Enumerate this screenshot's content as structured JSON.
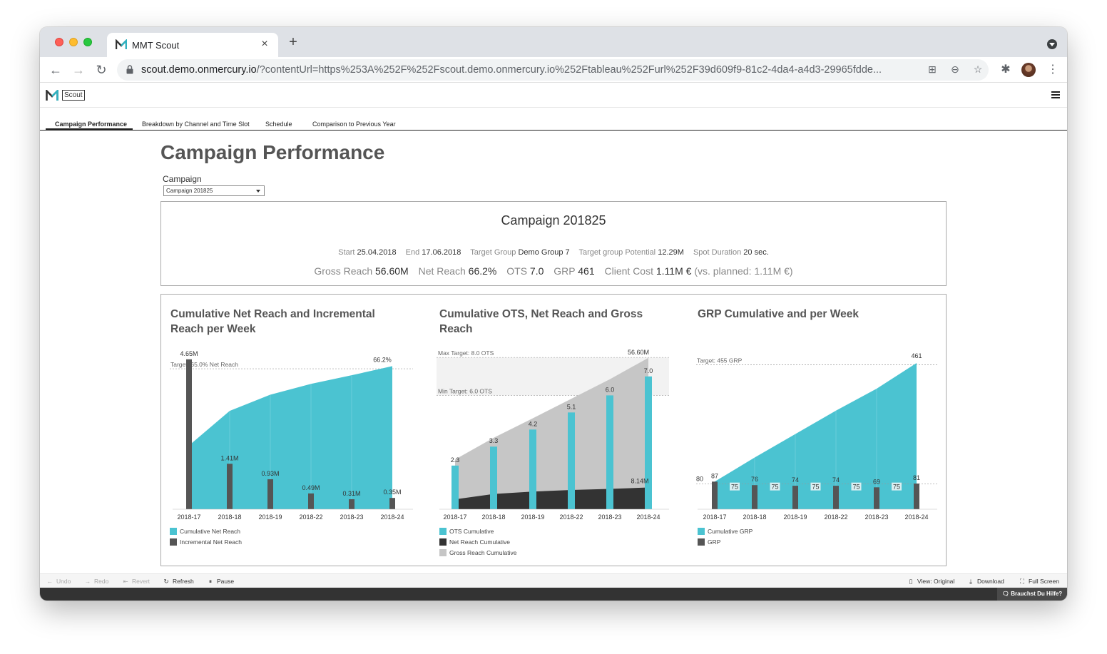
{
  "browser": {
    "tab_title": "MMT Scout",
    "url_host": "scout.demo.onmercury.io",
    "url_rest": "/?contentUrl=https%253A%252F%252Fscout.demo.onmercury.io%252Ftableau%252Furl%252F39d609f9-81c2-4da4-a4d3-29965fdde..."
  },
  "app": {
    "logo_text": "Scout",
    "tabs": [
      {
        "label": "Campaign Performance",
        "active": true
      },
      {
        "label": "Breakdown by Channel and Time Slot",
        "active": false
      },
      {
        "label": "Schedule",
        "active": false
      },
      {
        "label": "Comparison to Previous Year",
        "active": false
      }
    ]
  },
  "page": {
    "title": "Campaign Performance",
    "campaign_label": "Campaign",
    "campaign_selected": "Campaign 201825"
  },
  "summary": {
    "title": "Campaign 201825",
    "start_label": "Start",
    "start_value": "25.04.2018",
    "end_label": "End",
    "end_value": "17.06.2018",
    "target_group_label": "Target Group",
    "target_group_value": "Demo Group 7",
    "potential_label": "Target group Potential",
    "potential_value": "12.29M",
    "spot_label": "Spot Duration",
    "spot_value": "20 sec.",
    "gross_reach_label": "Gross Reach",
    "gross_reach_value": "56.60M",
    "net_reach_label": "Net Reach",
    "net_reach_value": "66.2%",
    "ots_label": "OTS",
    "ots_value": "7.0",
    "grp_label": "GRP",
    "grp_value": "461",
    "client_cost_label": "Client Cost",
    "client_cost_value": "1.11M €",
    "planned_text": "(vs. planned: 1.11M €)"
  },
  "colors": {
    "teal": "#4bc3d1",
    "teal_dark": "#2fb3c2",
    "dark_bar": "#555555",
    "net_reach_dark": "#333333",
    "gross_reach_gray": "#c6c6c6",
    "target_band": "#f2f2f2"
  },
  "chart_data": [
    {
      "type": "area",
      "title": "Cumulative Net Reach and Incremental Reach per Week",
      "categories": [
        "2018-17",
        "2018-18",
        "2018-19",
        "2018-22",
        "2018-23",
        "2018-24"
      ],
      "series": [
        {
          "name": "Cumulative Net Reach",
          "kind": "area",
          "values": [
            29.5,
            45.5,
            53.0,
            58.0,
            62.0,
            66.2
          ],
          "unit": "%"
        },
        {
          "name": "Incremental Net Reach",
          "kind": "bar",
          "values": [
            4.65,
            1.41,
            0.93,
            0.49,
            0.31,
            0.35
          ],
          "unit": "M",
          "labels": [
            "4.65M",
            "1.41M",
            "0.93M",
            "0.49M",
            "0.31M",
            "0.35M"
          ]
        }
      ],
      "end_label": "66.2%",
      "target_line": {
        "value": 65.0,
        "label": "Target: 65.0% Net Reach"
      },
      "legend": [
        "Cumulative Net Reach",
        "Incremental Net Reach"
      ]
    },
    {
      "type": "area",
      "title": "Cumulative OTS, Net Reach and Gross Reach",
      "categories": [
        "2018-17",
        "2018-18",
        "2018-19",
        "2018-22",
        "2018-23",
        "2018-24"
      ],
      "series": [
        {
          "name": "OTS Cumulative",
          "kind": "bar",
          "values": [
            2.3,
            3.3,
            4.2,
            5.1,
            6.0,
            7.0
          ],
          "labels": [
            "2.3",
            "3.3",
            "4.2",
            "5.1",
            "6.0",
            "7.0"
          ]
        },
        {
          "name": "Net Reach Cumulative",
          "kind": "area",
          "values": [
            3.7,
            5.7,
            6.6,
            7.2,
            7.6,
            8.14
          ],
          "unit": "M",
          "end_label": "8.14M"
        },
        {
          "name": "Gross Reach Cumulative",
          "kind": "area",
          "values": [
            18.6,
            26.7,
            34.0,
            41.3,
            48.6,
            56.6
          ],
          "unit": "M",
          "end_label": "56.60M"
        }
      ],
      "target_band": {
        "min": 6.0,
        "max": 8.0,
        "min_label": "Min Target: 6.0 OTS",
        "max_label": "Max Target: 8.0 OTS"
      },
      "legend": [
        "OTS Cumulative",
        "Net Reach Cumulative",
        "Gross Reach Cumulative"
      ]
    },
    {
      "type": "area",
      "title": "GRP Cumulative and per Week",
      "categories": [
        "2018-17",
        "2018-18",
        "2018-19",
        "2018-22",
        "2018-23",
        "2018-24"
      ],
      "series": [
        {
          "name": "Cumulative GRP",
          "kind": "area",
          "values": [
            87,
            163,
            237,
            311,
            380,
            461
          ]
        },
        {
          "name": "GRP",
          "kind": "bar",
          "values": [
            87,
            76,
            74,
            74,
            69,
            81
          ],
          "labels": [
            "87",
            "76",
            "74",
            "74",
            "69",
            "81"
          ]
        }
      ],
      "end_label": "461",
      "target_line": {
        "value": 455,
        "label": "Target: 455 GRP"
      },
      "ref_line": {
        "value": 80,
        "label": "80"
      },
      "avg_markers": {
        "value": 75,
        "labels": [
          "75",
          "75",
          "75",
          "75",
          "75"
        ]
      },
      "legend": [
        "Cumulative GRP",
        "GRP"
      ]
    }
  ],
  "bottom_bar": {
    "undo": "Undo",
    "redo": "Redo",
    "revert": "Revert",
    "refresh": "Refresh",
    "pause": "Pause",
    "view": "View: Original",
    "download": "Download",
    "fullscreen": "Full Screen"
  },
  "help": {
    "label": "Brauchst Du Hilfe?"
  }
}
